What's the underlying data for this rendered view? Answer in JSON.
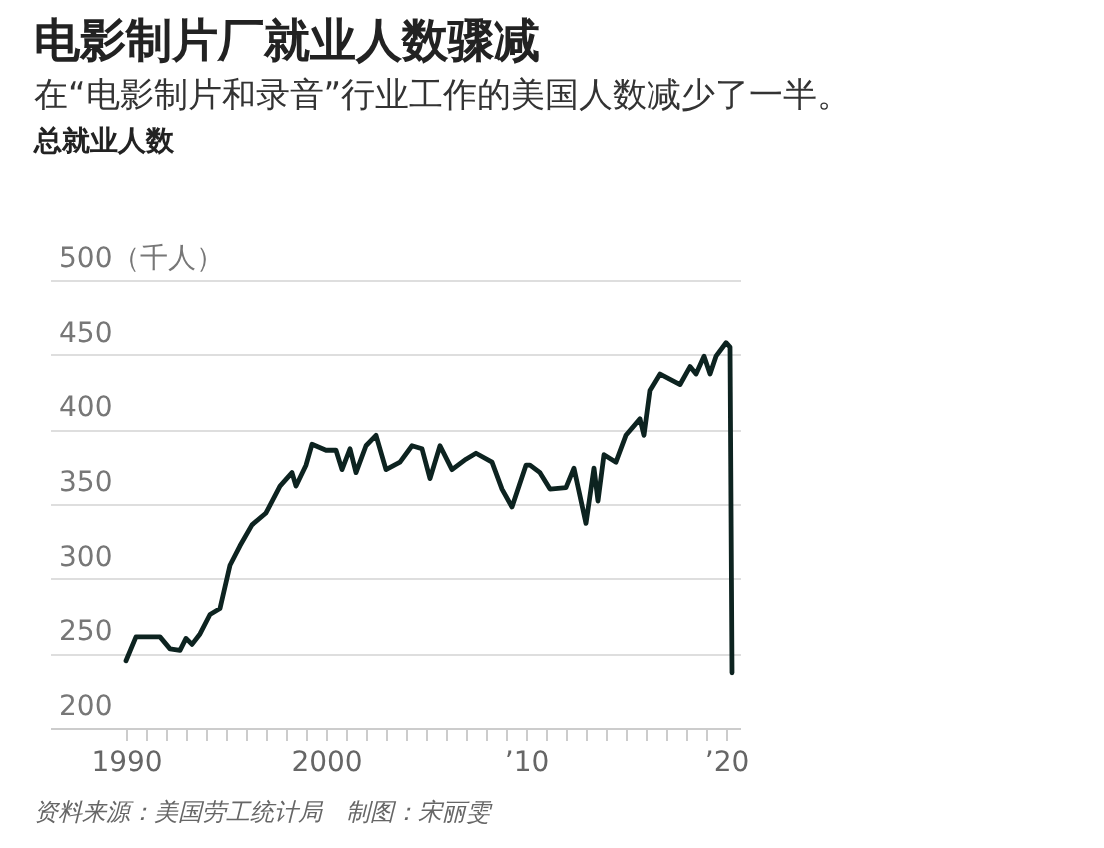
{
  "chart_data": {
    "type": "line",
    "title": "电影制片厂就业人数骤减",
    "subtitle": "在“电影制片和录音”行业工作的美国人数减少了一半。",
    "ylabel": "总就业人数",
    "annotations": [
      "资料来源：美国劳工统计局　制图：宋丽雯"
    ],
    "x": [
      1990.0,
      1990.5,
      1991.7,
      1992.2,
      1992.7,
      1993.0,
      1993.3,
      1993.7,
      1994.2,
      1994.7,
      1995.2,
      1995.7,
      1996.3,
      1997.0,
      1997.7,
      1998.3,
      1998.5,
      1999.0,
      1999.3,
      2000.0,
      2000.5,
      2000.8,
      2001.2,
      2001.5,
      2002.0,
      2002.5,
      2003.0,
      2003.7,
      2004.3,
      2004.8,
      2005.2,
      2005.7,
      2006.3,
      2007.0,
      2007.5,
      2008.3,
      2008.8,
      2009.3,
      2010.0,
      2010.2,
      2010.7,
      2011.2,
      2012.0,
      2012.4,
      2013.0,
      2013.4,
      2013.6,
      2013.9,
      2014.5,
      2015.0,
      2015.7,
      2015.9,
      2016.2,
      2016.7,
      2017.7,
      2018.2,
      2018.5,
      2018.9,
      2019.2,
      2019.5,
      2020.0,
      2020.2,
      2020.3
    ],
    "series": [
      {
        "color": "#0d2320",
        "values": [
          245,
          261,
          261,
          253,
          252,
          260,
          256,
          263,
          276,
          280,
          309,
          322,
          336,
          344,
          362,
          371,
          362,
          376,
          390,
          386,
          386,
          373,
          387,
          371,
          389,
          396,
          373,
          378,
          389,
          387,
          367,
          389,
          373,
          380,
          384,
          378,
          360,
          348,
          376,
          376,
          371,
          360,
          361,
          374,
          337,
          374,
          352,
          383,
          378,
          396,
          407,
          396,
          426,
          437,
          430,
          442,
          437,
          449,
          437,
          449,
          458,
          455,
          237
        ]
      }
    ],
    "xlim": [
      1986.2,
      2020.7
    ],
    "xticks": [
      1990,
      {
        "value": 1991,
        "label": null
      },
      {
        "value": 1992,
        "label": null
      },
      {
        "value": 1993,
        "label": null
      },
      {
        "value": 1994,
        "label": null
      },
      {
        "value": 1995,
        "label": null
      },
      {
        "value": 1996,
        "label": null
      },
      {
        "value": 1997,
        "label": null
      },
      {
        "value": 1998,
        "label": null
      },
      {
        "value": 1999,
        "label": null
      },
      2000,
      {
        "value": 2001,
        "label": null
      },
      {
        "value": 2002,
        "label": null
      },
      {
        "value": 2003,
        "label": null
      },
      {
        "value": 2004,
        "label": null
      },
      {
        "value": 2005,
        "label": null
      },
      {
        "value": 2006,
        "label": null
      },
      {
        "value": 2007,
        "label": null
      },
      {
        "value": 2008,
        "label": null
      },
      {
        "value": 2009,
        "label": null
      },
      {
        "value": 2010,
        "label": "’10"
      },
      {
        "value": 2011,
        "label": null
      },
      {
        "value": 2012,
        "label": null
      },
      {
        "value": 2013,
        "label": null
      },
      {
        "value": 2014,
        "label": null
      },
      {
        "value": 2015,
        "label": null
      },
      {
        "value": 2016,
        "label": null
      },
      {
        "value": 2017,
        "label": null
      },
      {
        "value": 2018,
        "label": null
      },
      {
        "value": 2019,
        "label": null
      },
      {
        "value": 2020,
        "label": "’20"
      }
    ],
    "ylim": [
      200,
      500
    ],
    "yticks": [
      200,
      250,
      300,
      350,
      400,
      450,
      {
        "value": 500,
        "label": "500（千人）"
      }
    ],
    "grid": "y",
    "marker": "none",
    "line_style": "solid"
  }
}
